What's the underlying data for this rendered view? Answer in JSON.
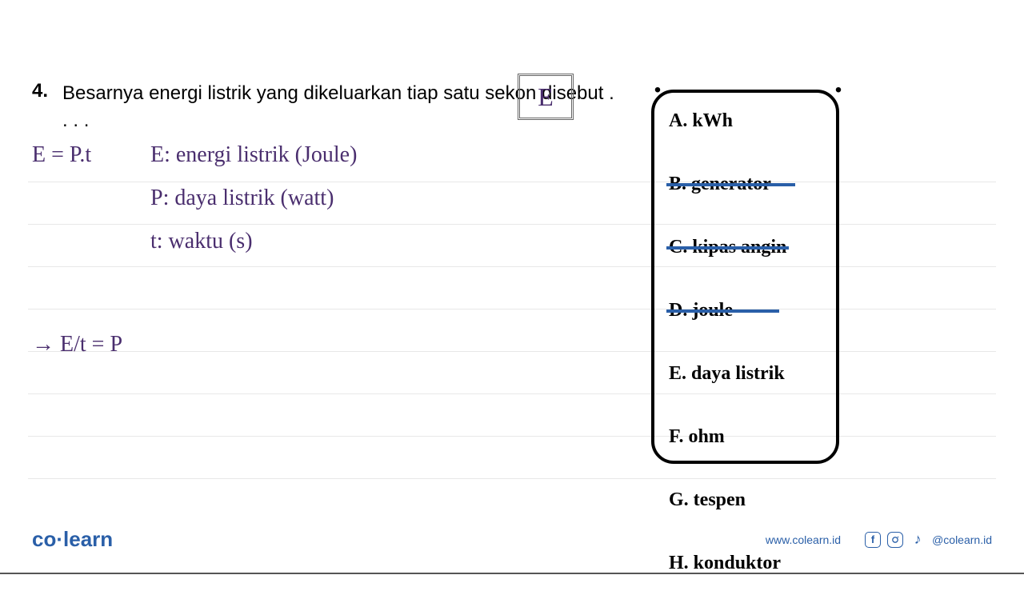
{
  "question": {
    "number": "4.",
    "text": "Besarnya energi listrik yang dikeluarkan tiap satu sekon disebut . . . ."
  },
  "boxed_letter": "E",
  "work": {
    "formula": "E = P.t",
    "definitions": [
      "E: energi listrik (Joule)",
      "P: daya listrik (watt)",
      "t: waktu (s)"
    ],
    "derivation": "→ E/t = P"
  },
  "options": [
    {
      "label": "A. kWh",
      "struck": false
    },
    {
      "label": "B. generator",
      "struck": true,
      "wide": true
    },
    {
      "label": "C. kipas angin",
      "struck": true
    },
    {
      "label": "D. joule",
      "struck": true,
      "extra": true
    },
    {
      "label": "E. daya listrik",
      "struck": false
    },
    {
      "label": "F. ohm",
      "struck": false
    },
    {
      "label": "G. tespen",
      "struck": false
    },
    {
      "label": "H. konduktor",
      "struck": false
    }
  ],
  "footer": {
    "logo_co": "co",
    "logo_learn": "learn",
    "website": "www.colearn.id",
    "handle": "@colearn.id"
  },
  "colors": {
    "primary": "#2a5fa8",
    "work_text": "#4a2e6e",
    "line": "#e8e8e8"
  }
}
